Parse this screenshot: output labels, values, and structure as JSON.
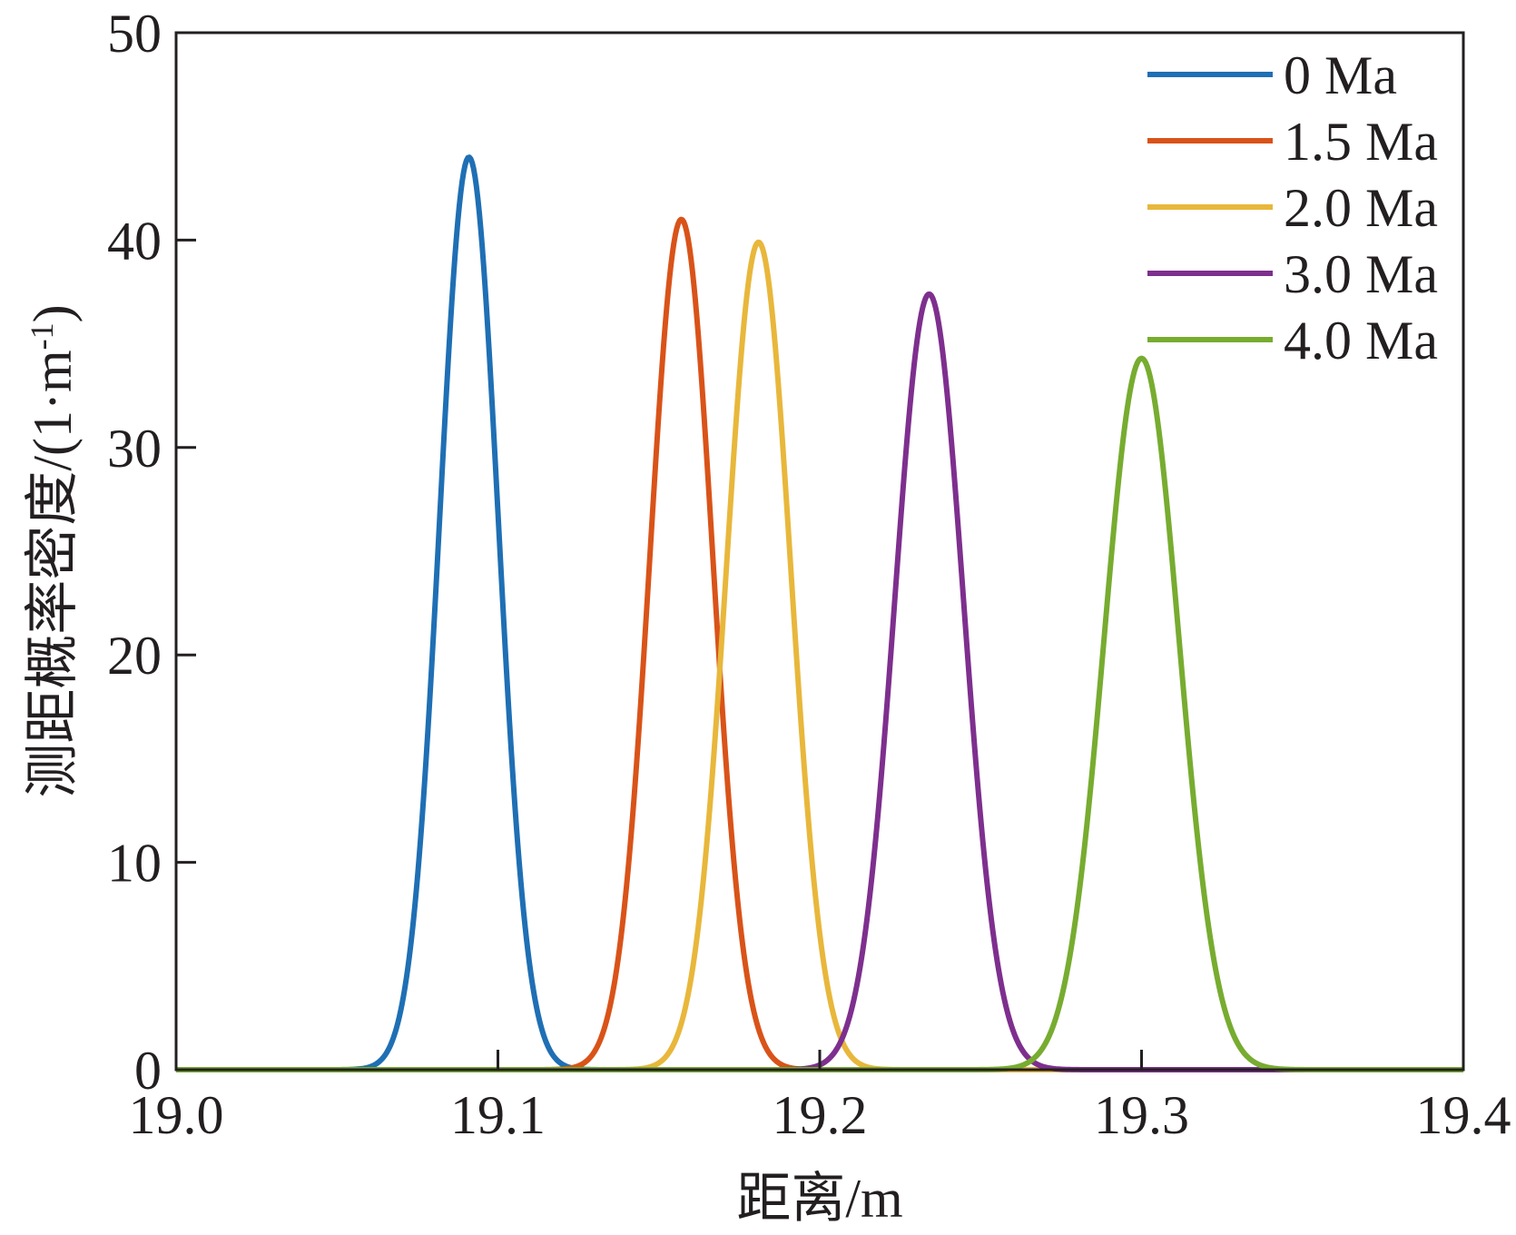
{
  "chart_data": {
    "type": "line",
    "xlabel": "距离/m",
    "ylabel_main": "测距概率密度/(1·m",
    "ylabel_sup": "-1",
    "ylabel_close": ")",
    "xlim": [
      19.0,
      19.4
    ],
    "ylim": [
      0,
      50
    ],
    "xticks": [
      "19.0",
      "19.1",
      "19.2",
      "19.3",
      "19.4"
    ],
    "yticks": [
      "0",
      "10",
      "20",
      "30",
      "40",
      "50"
    ],
    "grid": false,
    "legend_position": "top-right",
    "series": [
      {
        "name": "0 Ma",
        "color": "#1f6fb4",
        "mean": 19.091,
        "peak": 44.0
      },
      {
        "name": "1.5 Ma",
        "color": "#d95319",
        "mean": 19.157,
        "peak": 41.0
      },
      {
        "name": "2.0 Ma",
        "color": "#e8b73b",
        "mean": 19.181,
        "peak": 39.9
      },
      {
        "name": "3.0 Ma",
        "color": "#7e2f8e",
        "mean": 19.234,
        "peak": 37.4
      },
      {
        "name": "4.0 Ma",
        "color": "#77ac30",
        "mean": 19.3,
        "peak": 34.3
      }
    ]
  }
}
